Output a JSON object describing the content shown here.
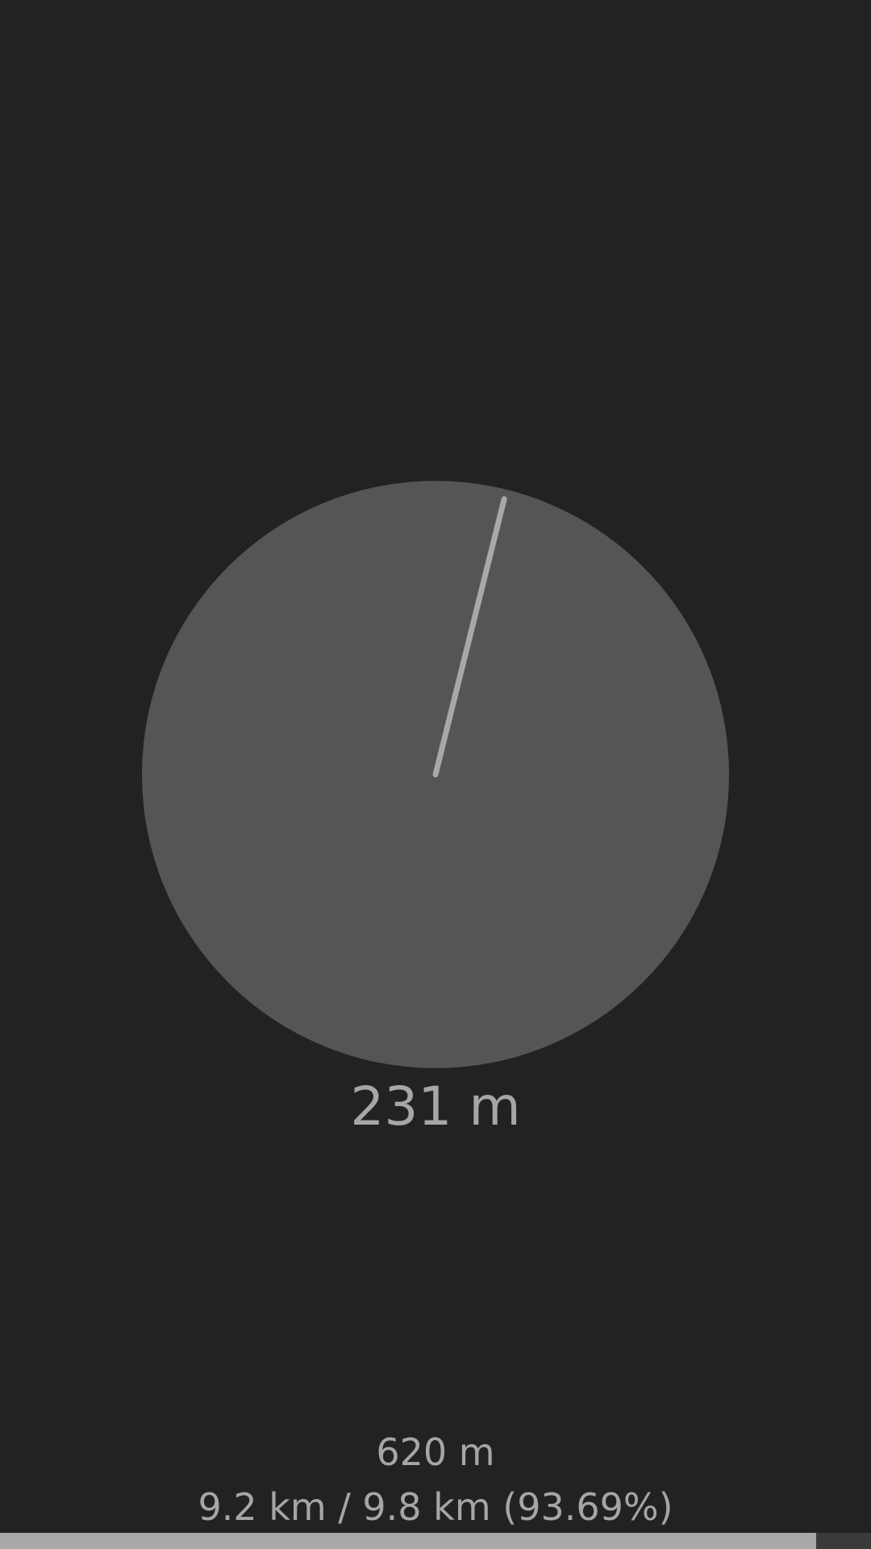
{
  "compass": {
    "bearing_deg": 14,
    "distance_text": "231 m"
  },
  "footer": {
    "next_distance": "620 m",
    "route_progress_text": "9.2 km / 9.8 km (93.69%)",
    "progress_percent": 93.69
  },
  "colors": {
    "background": "#222222",
    "dial": "#555555",
    "needle": "#a8a8a8",
    "text": "#a6a6a6"
  }
}
